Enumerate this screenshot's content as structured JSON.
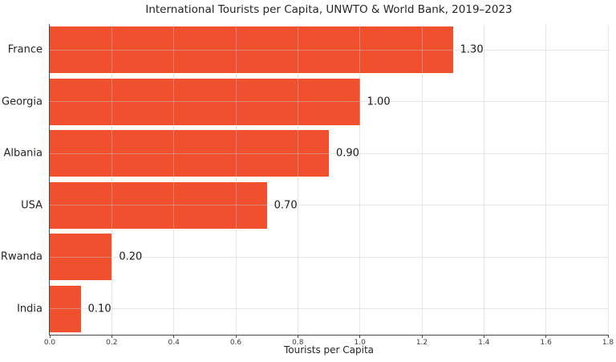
{
  "chart_data": {
    "type": "bar",
    "orientation": "horizontal",
    "title": "International Tourists per Capita, UNWTO & World Bank, 2019–2023",
    "xlabel": "Tourists per Capita",
    "ylabel": "",
    "categories": [
      "France",
      "Georgia",
      "Albania",
      "USA",
      "Rwanda",
      "India"
    ],
    "values": [
      1.3,
      1.0,
      0.9,
      0.7,
      0.2,
      0.1
    ],
    "value_labels": [
      "1.30",
      "1.00",
      "0.90",
      "0.70",
      "0.20",
      "0.10"
    ],
    "xlim": [
      0.0,
      1.8
    ],
    "xticks": [
      0.0,
      0.2,
      0.4,
      0.6,
      0.8,
      1.0,
      1.2,
      1.4,
      1.6,
      1.8
    ],
    "xtick_labels": [
      "0.0",
      "0.2",
      "0.4",
      "0.6",
      "0.8",
      "1.0",
      "1.2",
      "1.4",
      "1.6",
      "1.8"
    ],
    "grid": true,
    "legend": false,
    "bar_color": "#f0502d",
    "background_color": "#ffffff",
    "bar_fraction_of_band": 0.9
  }
}
